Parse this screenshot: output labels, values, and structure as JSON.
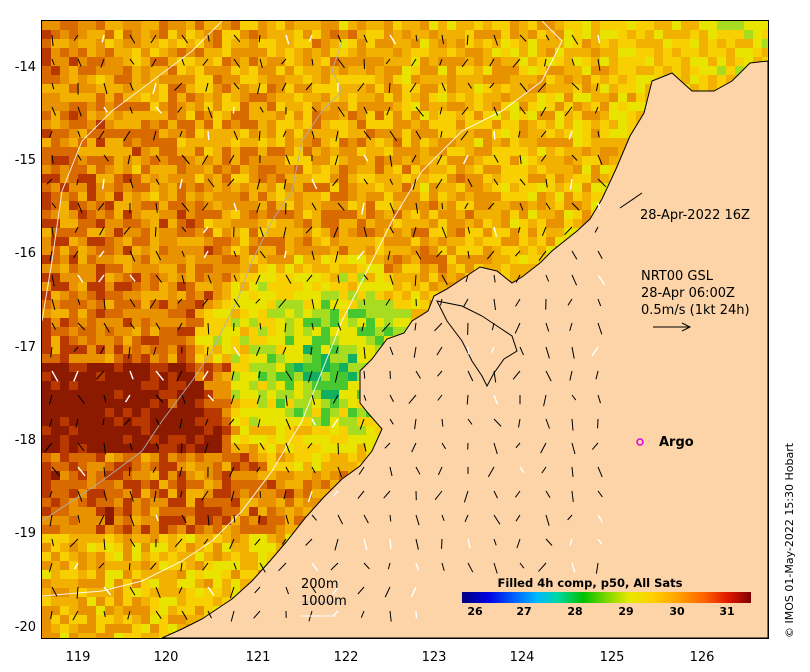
{
  "map": {
    "y_ticks": [
      "-14",
      "-15",
      "-16",
      "-17",
      "-18",
      "-19",
      "-20"
    ],
    "x_ticks": [
      "119",
      "120",
      "121",
      "122",
      "123",
      "124",
      "125",
      "126"
    ],
    "palette": [
      "#8b1a00",
      "#b83800",
      "#d86a00",
      "#e89200",
      "#f2b000",
      "#f8cf00",
      "#e8e400",
      "#a8dc20",
      "#48c830",
      "#10b060",
      "#0050e0"
    ],
    "land_color": "#fcd4a8"
  },
  "annotations": {
    "timestamp": "28-Apr-2022 16Z",
    "current_title": "NRT00 GSL",
    "current_time": "28-Apr 06:00Z",
    "current_scale": "0.5m/s (1kt 24h)",
    "argo_label": "Argo",
    "contour_200": "200m",
    "contour_1000": "1000m"
  },
  "colorbar": {
    "title": "Filled 4h comp, p50, All Sats",
    "ticks": [
      "26",
      "27",
      "28",
      "29",
      "30",
      "31"
    ],
    "range": [
      25.5,
      31.7
    ]
  },
  "credit": "© IMOS 01-May-2022 15:30 Hobart"
}
